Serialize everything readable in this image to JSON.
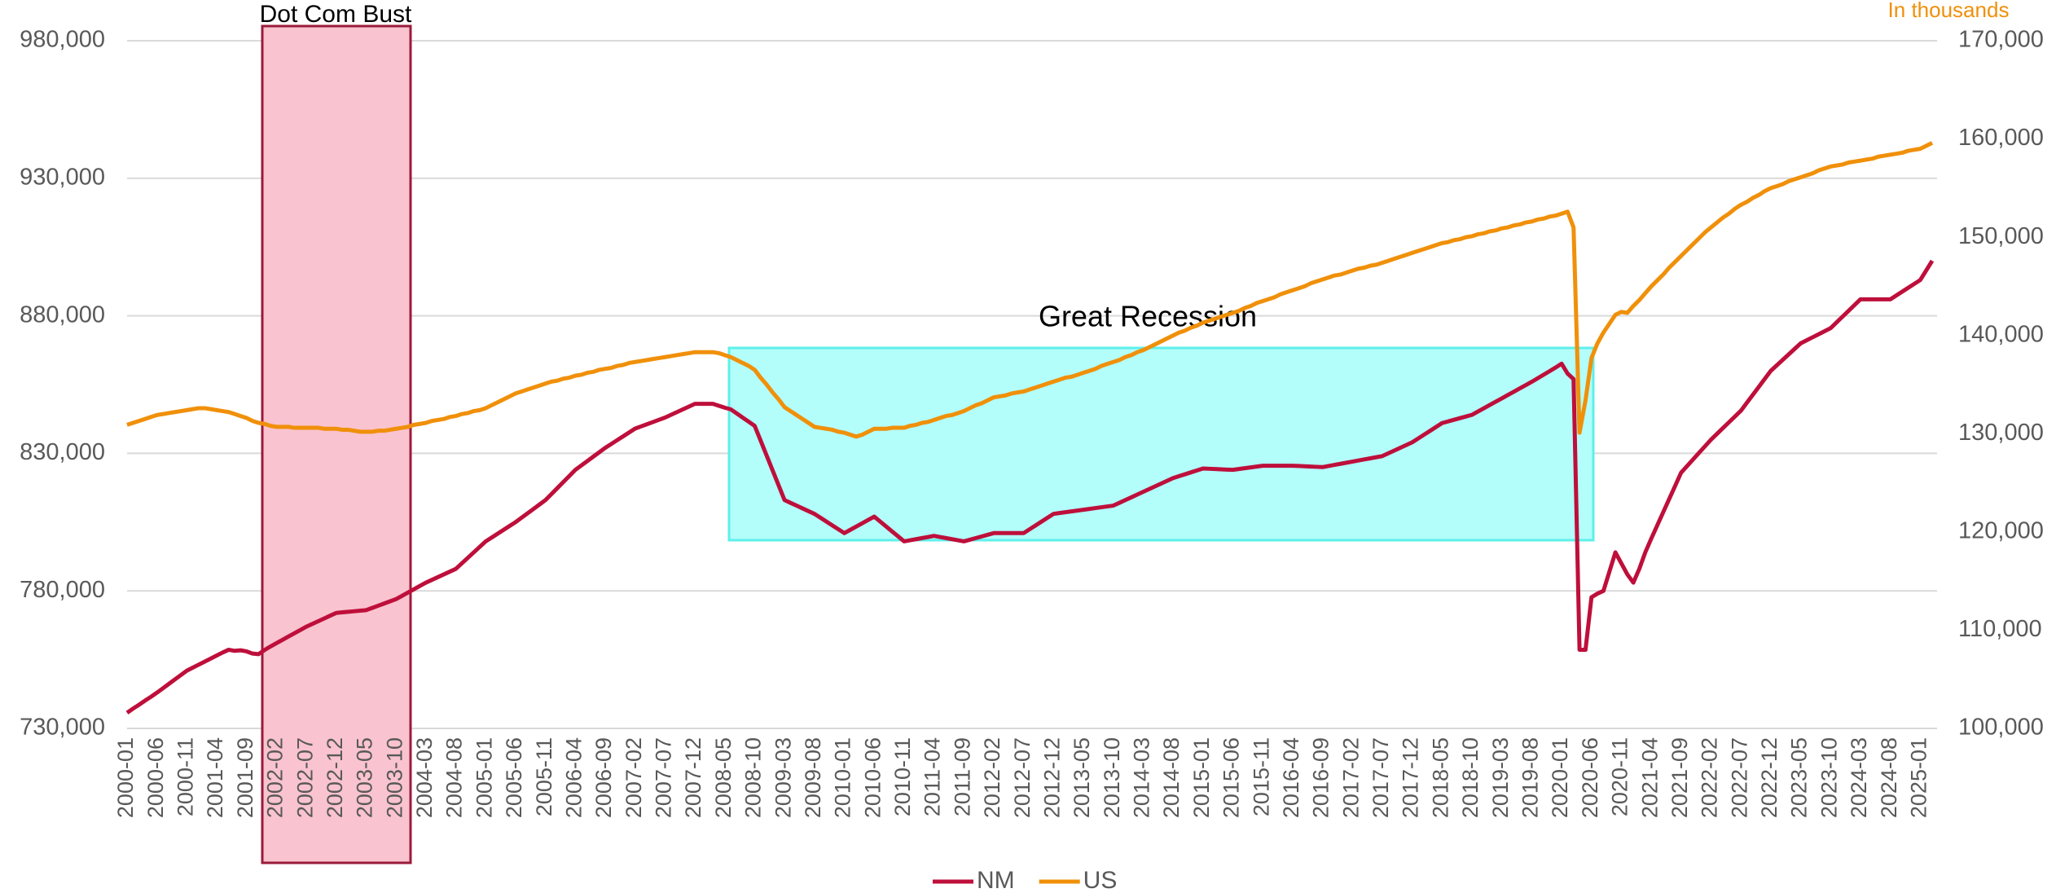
{
  "chart_data": {
    "type": "line",
    "y2_label": "In thousands",
    "annotations": [
      {
        "text": "Dot Com Bust"
      },
      {
        "text": "Great Recession"
      }
    ],
    "legend": "bottom",
    "grid": true,
    "categories": [
      "2000-01",
      null,
      null,
      null,
      null,
      "2000-06",
      null,
      null,
      null,
      null,
      "2000-11",
      null,
      null,
      null,
      null,
      "2001-04",
      null,
      null,
      null,
      null,
      "2001-09",
      null,
      null,
      null,
      null,
      "2002-02",
      null,
      null,
      null,
      null,
      "2002-07",
      null,
      null,
      null,
      null,
      "2002-12",
      null,
      null,
      null,
      null,
      "2003-05",
      null,
      null,
      null,
      null,
      "2003-10",
      null,
      null,
      null,
      null,
      "2004-03",
      null,
      null,
      null,
      null,
      "2004-08",
      null,
      null,
      null,
      null,
      "2005-01",
      null,
      null,
      null,
      null,
      "2005-06",
      null,
      null,
      null,
      null,
      "2005-11",
      null,
      null,
      null,
      null,
      "2006-04",
      null,
      null,
      null,
      null,
      "2006-09",
      null,
      null,
      null,
      null,
      "2007-02",
      null,
      null,
      null,
      null,
      "2007-07",
      null,
      null,
      null,
      null,
      "2007-12",
      null,
      null,
      null,
      null,
      "2008-05",
      null,
      null,
      null,
      null,
      "2008-10",
      null,
      null,
      null,
      null,
      "2009-03",
      null,
      null,
      null,
      null,
      "2009-08",
      null,
      null,
      null,
      null,
      "2010-01",
      null,
      null,
      null,
      null,
      "2010-06",
      null,
      null,
      null,
      null,
      "2010-11",
      null,
      null,
      null,
      null,
      "2011-04",
      null,
      null,
      null,
      null,
      "2011-09",
      null,
      null,
      null,
      null,
      "2012-02",
      null,
      null,
      null,
      null,
      "2012-07",
      null,
      null,
      null,
      null,
      "2012-12",
      null,
      null,
      null,
      null,
      "2013-05",
      null,
      null,
      null,
      null,
      "2013-10",
      null,
      null,
      null,
      null,
      "2014-03",
      null,
      null,
      null,
      null,
      "2014-08",
      null,
      null,
      null,
      null,
      "2015-01",
      null,
      null,
      null,
      null,
      "2015-06",
      null,
      null,
      null,
      null,
      "2015-11",
      null,
      null,
      null,
      null,
      "2016-04",
      null,
      null,
      null,
      null,
      "2016-09",
      null,
      null,
      null,
      null,
      "2017-02",
      null,
      null,
      null,
      null,
      "2017-07",
      null,
      null,
      null,
      null,
      "2017-12",
      null,
      null,
      null,
      null,
      "2018-05",
      null,
      null,
      null,
      null,
      "2018-10",
      null,
      null,
      null,
      null,
      "2019-03",
      null,
      null,
      null,
      null,
      "2019-08",
      null,
      null,
      null,
      null,
      "2020-01",
      null,
      null,
      null,
      null,
      "2020-06",
      null,
      null,
      null,
      null,
      "2020-11",
      null,
      null,
      null,
      null,
      "2021-04",
      null,
      null,
      null,
      null,
      "2021-09",
      null,
      null,
      null,
      null,
      "2022-02",
      null,
      null,
      null,
      null,
      "2022-07",
      null,
      null,
      null,
      null,
      "2022-12",
      null,
      null,
      null,
      null,
      "2023-05",
      null,
      null,
      null,
      null,
      "2023-10",
      null,
      null,
      null,
      null,
      "2024-03",
      null,
      null,
      null,
      null,
      "2024-08",
      null,
      null,
      null,
      null,
      "2025-01",
      null,
      null
    ],
    "series": [
      {
        "name": "NM",
        "color": "#be0f3b",
        "axis": "y",
        "values": [
          735700,
          737200,
          738600,
          740100,
          741500,
          743000,
          744600,
          746200,
          747800,
          749400,
          751000,
          752100,
          753200,
          754300,
          755400,
          756500,
          757600,
          758600,
          758200,
          758400,
          758000,
          757200,
          757000,
          758500,
          759800,
          761000,
          762200,
          763400,
          764600,
          765800,
          767000,
          768000,
          769000,
          770000,
          771000,
          772000,
          772200,
          772400,
          772600,
          772800,
          773000,
          773800,
          774600,
          775400,
          776200,
          777000,
          778200,
          779400,
          780600,
          781800,
          783000,
          784000,
          785000,
          786000,
          787000,
          788000,
          790000,
          792000,
          794000,
          796000,
          798000,
          799400,
          800800,
          802200,
          803600,
          805000,
          806600,
          808200,
          809800,
          811400,
          813000,
          815200,
          817400,
          819600,
          821800,
          824000,
          825600,
          827200,
          828800,
          830400,
          832000,
          833400,
          834800,
          836200,
          837600,
          839000,
          839800,
          840600,
          841400,
          842200,
          843000,
          844000,
          845000,
          846000,
          847000,
          848000,
          848000,
          848000,
          848000,
          847300,
          846600,
          846000,
          844500,
          843000,
          841500,
          840000,
          834600,
          829200,
          823800,
          818400,
          813000,
          812000,
          811000,
          810000,
          809000,
          808000,
          806600,
          805200,
          803800,
          802400,
          801000,
          802200,
          803400,
          804600,
          805800,
          807000,
          805200,
          803400,
          801600,
          799800,
          798000,
          798400,
          798800,
          799200,
          799600,
          800000,
          799600,
          799200,
          798800,
          798400,
          798000,
          798600,
          799200,
          799800,
          800400,
          801000,
          801000,
          801000,
          801000,
          801000,
          801000,
          802400,
          803800,
          805200,
          806600,
          808000,
          808300,
          808600,
          808900,
          809200,
          809500,
          809800,
          810100,
          810400,
          810700,
          811000,
          812000,
          813000,
          814000,
          815000,
          816000,
          817000,
          818000,
          819000,
          820000,
          821000,
          821700,
          822400,
          823100,
          823800,
          824500,
          824400,
          824300,
          824200,
          824100,
          824000,
          824300,
          824600,
          824900,
          825200,
          825500,
          825500,
          825500,
          825500,
          825500,
          825500,
          825400,
          825300,
          825200,
          825100,
          825000,
          825400,
          825800,
          826200,
          826600,
          827000,
          827400,
          827800,
          828200,
          828600,
          829000,
          830000,
          831000,
          832000,
          833000,
          834000,
          835400,
          836800,
          838200,
          839600,
          841000,
          841600,
          842200,
          842800,
          843400,
          844000,
          845200,
          846400,
          847600,
          848800,
          850000,
          851200,
          852400,
          853600,
          854800,
          856000,
          857300,
          858600,
          859900,
          861200,
          862600,
          859000,
          857000,
          758600,
          758600,
          777700,
          779000,
          780000,
          787000,
          794000,
          790000,
          786000,
          783000,
          788000,
          794000,
          799000,
          803800,
          808600,
          813400,
          818200,
          823000,
          825400,
          827800,
          830200,
          832600,
          835000,
          837100,
          839200,
          841300,
          843400,
          845500,
          848400,
          851300,
          854200,
          857100,
          860000,
          862000,
          864000,
          866000,
          868000,
          870000,
          871100,
          872200,
          873300,
          874400,
          875500,
          877600,
          879700,
          881800,
          883900,
          886000,
          886000,
          886000,
          886000,
          886000,
          886000,
          887400,
          888800,
          890200,
          891600,
          893000,
          896500,
          900000
        ]
      },
      {
        "name": "US",
        "color": "#f0900a",
        "axis": "y2",
        "values": [
          130900,
          131100,
          131300,
          131500,
          131700,
          131900,
          132000,
          132100,
          132200,
          132300,
          132400,
          132500,
          132600,
          132600,
          132500,
          132400,
          132300,
          132200,
          132000,
          131800,
          131600,
          131300,
          131100,
          131000,
          130800,
          130700,
          130700,
          130700,
          130600,
          130600,
          130600,
          130600,
          130600,
          130500,
          130500,
          130500,
          130400,
          130400,
          130300,
          130200,
          130200,
          130200,
          130300,
          130300,
          130400,
          130500,
          130600,
          130700,
          130900,
          131000,
          131100,
          131300,
          131400,
          131500,
          131700,
          131800,
          132000,
          132100,
          132300,
          132400,
          132600,
          132900,
          133200,
          133500,
          133800,
          134100,
          134300,
          134500,
          134700,
          134900,
          135100,
          135300,
          135400,
          135600,
          135700,
          135900,
          136000,
          136200,
          136300,
          136500,
          136600,
          136700,
          136900,
          137000,
          137200,
          137300,
          137400,
          137500,
          137600,
          137700,
          137800,
          137900,
          138000,
          138100,
          138200,
          138300,
          138300,
          138300,
          138300,
          138200,
          138000,
          137800,
          137500,
          137200,
          136900,
          136500,
          135700,
          135000,
          134200,
          133500,
          132700,
          132300,
          131900,
          131500,
          131100,
          130700,
          130600,
          130500,
          130400,
          130200,
          130100,
          129900,
          129700,
          129900,
          130200,
          130500,
          130500,
          130500,
          130600,
          130600,
          130600,
          130800,
          130900,
          131100,
          131200,
          131400,
          131600,
          131800,
          131900,
          132100,
          132300,
          132600,
          132900,
          133100,
          133400,
          133700,
          133800,
          133900,
          134100,
          134200,
          134300,
          134500,
          134700,
          134900,
          135100,
          135300,
          135500,
          135700,
          135800,
          136000,
          136200,
          136400,
          136600,
          136900,
          137100,
          137300,
          137500,
          137800,
          138000,
          138300,
          138500,
          138800,
          139100,
          139400,
          139700,
          140000,
          140300,
          140500,
          140800,
          141000,
          141300,
          141500,
          141700,
          141900,
          142100,
          142300,
          142500,
          142800,
          143000,
          143300,
          143500,
          143700,
          143900,
          144200,
          144400,
          144600,
          144800,
          145000,
          145300,
          145500,
          145700,
          145900,
          146100,
          146200,
          146400,
          146600,
          146800,
          146900,
          147100,
          147200,
          147400,
          147600,
          147800,
          148000,
          148200,
          148400,
          148600,
          148800,
          149000,
          149200,
          149400,
          149500,
          149700,
          149800,
          150000,
          150100,
          150300,
          150400,
          150600,
          150700,
          150900,
          151000,
          151200,
          151300,
          151500,
          151600,
          151800,
          151900,
          152100,
          152200,
          152400,
          152600,
          151000,
          130100,
          133400,
          137700,
          139200,
          140300,
          141200,
          142100,
          142400,
          142300,
          143000,
          143600,
          144300,
          145000,
          145600,
          146200,
          146900,
          147500,
          148100,
          148700,
          149300,
          149900,
          150500,
          151000,
          151500,
          152000,
          152400,
          152900,
          153300,
          153600,
          154000,
          154300,
          154700,
          155000,
          155200,
          155400,
          155700,
          155900,
          156100,
          156300,
          156500,
          156800,
          157000,
          157200,
          157300,
          157400,
          157600,
          157700,
          157800,
          157900,
          158000,
          158200,
          158300,
          158400,
          158500,
          158600,
          158800,
          158900,
          159000,
          159300,
          159600
        ]
      }
    ],
    "ylim": [
      730000,
      980000
    ],
    "yticks": [
      {
        "value": 730000,
        "label": "730,000"
      },
      {
        "value": 780000,
        "label": "780,000"
      },
      {
        "value": 830000,
        "label": "830,000"
      },
      {
        "value": 880000,
        "label": "880,000"
      },
      {
        "value": 930000,
        "label": "930,000"
      },
      {
        "value": 980000,
        "label": "980,000"
      }
    ],
    "y2lim": [
      100000,
      170000
    ],
    "y2ticks": [
      {
        "value": 100000,
        "label": "100,000"
      },
      {
        "value": 110000,
        "label": "110,000"
      },
      {
        "value": 120000,
        "label": "120,000"
      },
      {
        "value": 130000,
        "label": "130,000"
      },
      {
        "value": 140000,
        "label": "140,000"
      },
      {
        "value": 150000,
        "label": "150,000"
      },
      {
        "value": 160000,
        "label": "160,000"
      },
      {
        "value": 170000,
        "label": "170,000"
      }
    ]
  }
}
